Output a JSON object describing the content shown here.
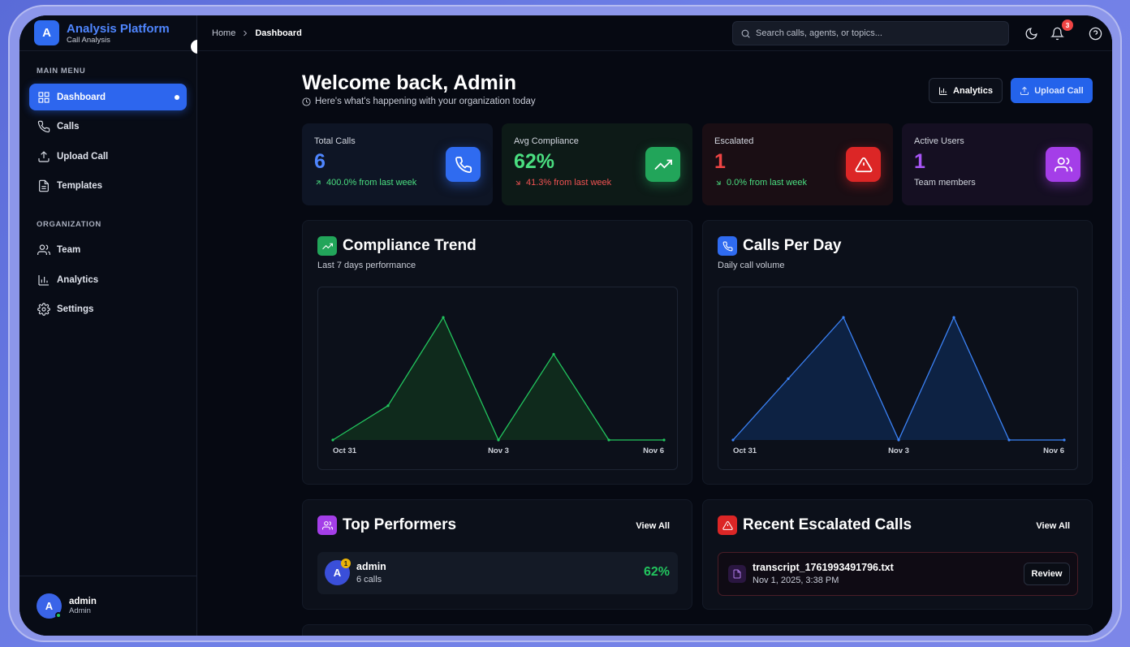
{
  "brand": {
    "logo_letter": "A",
    "name": "Analysis Platform",
    "subtitle": "Call Analysis"
  },
  "sidebar": {
    "main_menu_label": "MAIN MENU",
    "main_items": [
      {
        "label": "Dashboard",
        "icon": "grid-icon",
        "active": true
      },
      {
        "label": "Calls",
        "icon": "phone-icon"
      },
      {
        "label": "Upload Call",
        "icon": "upload-icon"
      },
      {
        "label": "Templates",
        "icon": "document-icon"
      }
    ],
    "org_label": "ORGANIZATION",
    "org_items": [
      {
        "label": "Team",
        "icon": "users-icon"
      },
      {
        "label": "Analytics",
        "icon": "bar-chart-icon"
      },
      {
        "label": "Settings",
        "icon": "gear-icon"
      }
    ],
    "user": {
      "initial": "A",
      "name": "admin",
      "role": "Admin"
    }
  },
  "topbar": {
    "breadcrumb": [
      "Home",
      "Dashboard"
    ],
    "search_placeholder": "Search calls, agents, or topics...",
    "notification_count": "3"
  },
  "header": {
    "title": "Welcome back, Admin",
    "subtitle": "Here's what's happening with your organization today",
    "analytics_button": "Analytics",
    "upload_button": "Upload Call"
  },
  "stats": [
    {
      "label": "Total Calls",
      "value": "6",
      "change": "400.0% from last week",
      "color": "#4f86ff",
      "sub_color": "#4ade80",
      "icon": "phone-icon"
    },
    {
      "label": "Avg Compliance",
      "value": "62%",
      "change": "41.3% from last week",
      "color": "#4ade80",
      "sub_color": "#f05252",
      "icon": "trending-up-icon"
    },
    {
      "label": "Escalated",
      "value": "1",
      "change": "0.0% from last week",
      "color": "#ef4444",
      "sub_color": "#4ade80",
      "icon": "alert-triangle-icon"
    },
    {
      "label": "Active Users",
      "value": "1",
      "change": "Team members",
      "color": "#a855f7",
      "sub_color": "#cfd3dc",
      "icon": "users-icon"
    }
  ],
  "compliance_panel": {
    "title": "Compliance Trend",
    "subtitle": "Last 7 days performance"
  },
  "calls_panel": {
    "title": "Calls Per Day",
    "subtitle": "Daily call volume"
  },
  "chart_data": [
    {
      "type": "area",
      "title": "Compliance Trend",
      "x": [
        "Oct 31",
        "Nov 1",
        "Nov 2",
        "Nov 3",
        "Nov 4",
        "Nov 5",
        "Nov 6"
      ],
      "xticks": [
        "Oct 31",
        "Nov 3",
        "Nov 6"
      ],
      "series": [
        {
          "values": [
            0,
            28,
            100,
            0,
            70,
            0,
            0
          ],
          "color": "#22c55e"
        }
      ]
    },
    {
      "type": "area",
      "title": "Calls Per Day",
      "x": [
        "Oct 31",
        "Nov 1",
        "Nov 2",
        "Nov 3",
        "Nov 4",
        "Nov 5",
        "Nov 6"
      ],
      "xticks": [
        "Oct 31",
        "Nov 3",
        "Nov 6"
      ],
      "series": [
        {
          "values": [
            0,
            1,
            2,
            0,
            2,
            0,
            0
          ],
          "color": "#3b82f6"
        }
      ]
    }
  ],
  "performers": {
    "title": "Top Performers",
    "view_all": "View All",
    "items": [
      {
        "initial": "A",
        "rank": "1",
        "name": "admin",
        "calls": "6 calls",
        "score": "62%"
      }
    ]
  },
  "escalated": {
    "title": "Recent Escalated Calls",
    "view_all": "View All",
    "items": [
      {
        "file": "transcript_1761993491796.txt",
        "date": "Nov 1, 2025, 3:38 PM",
        "action": "Review"
      }
    ]
  }
}
